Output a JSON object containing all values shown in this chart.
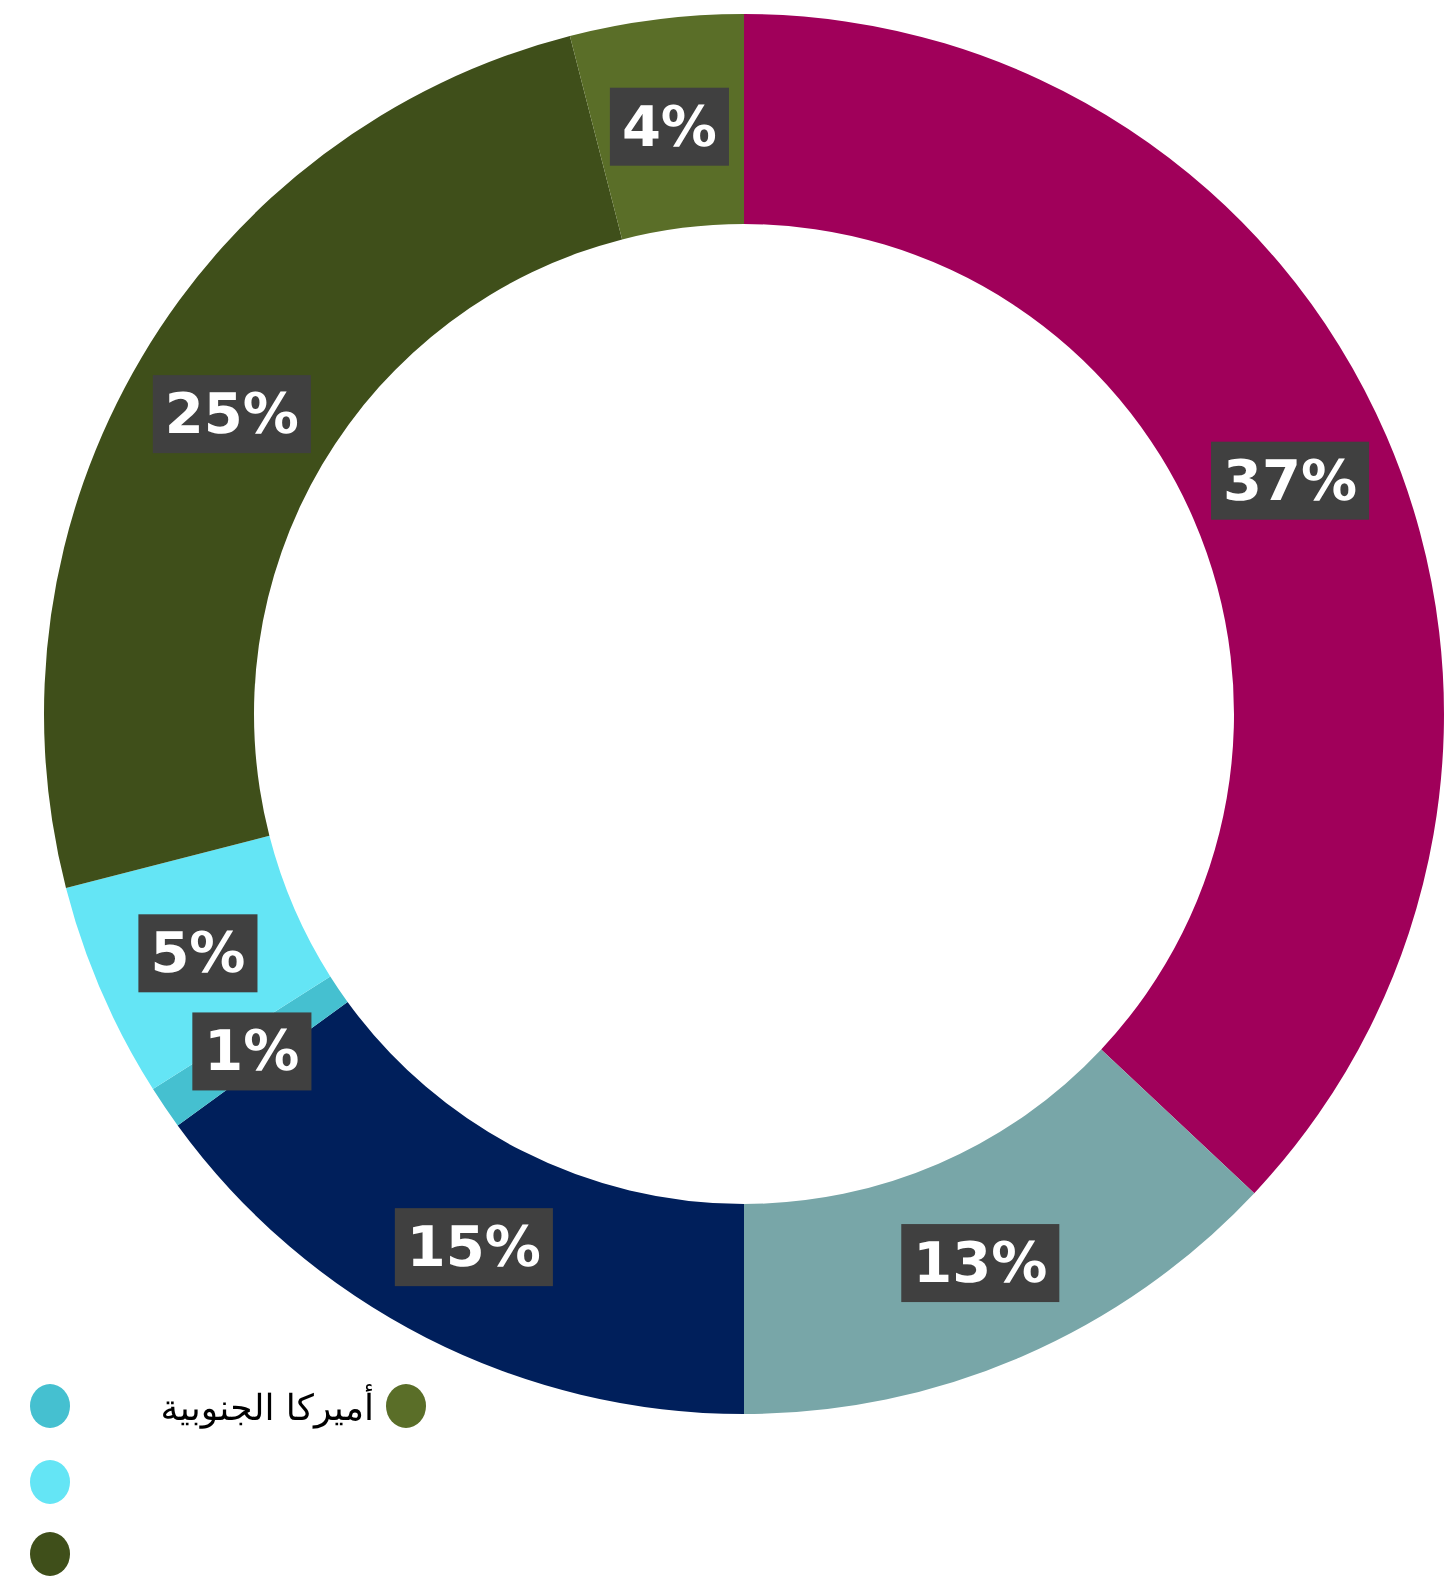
{
  "chart_data": {
    "type": "donut",
    "categories": [
      null,
      null,
      null,
      null,
      null,
      null,
      "أميركا الجنوبية"
    ],
    "values": [
      37,
      13,
      15,
      1,
      5,
      25,
      4
    ],
    "colors": [
      "#a0005a",
      "#78a6a8",
      "#001f5b",
      "#45c0d0",
      "#64e5f5",
      "#3f4f1a",
      "#5a6e28"
    ],
    "value_labels": [
      "37%",
      "13%",
      "15%",
      "1%",
      "5%",
      "25%",
      "4%"
    ],
    "legend": "bottom left"
  }
}
